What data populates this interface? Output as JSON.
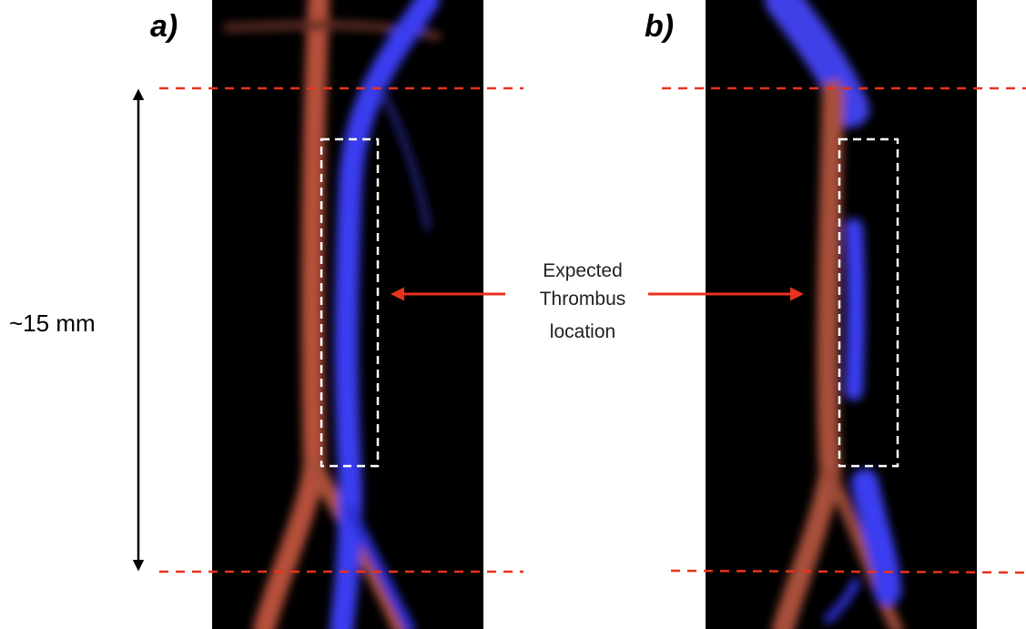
{
  "panels": [
    {
      "label": "a)"
    },
    {
      "label": "b)"
    }
  ],
  "scale_label": "~15 mm",
  "annotation": {
    "lines": [
      "Expected",
      "Thrombus",
      "location"
    ]
  }
}
